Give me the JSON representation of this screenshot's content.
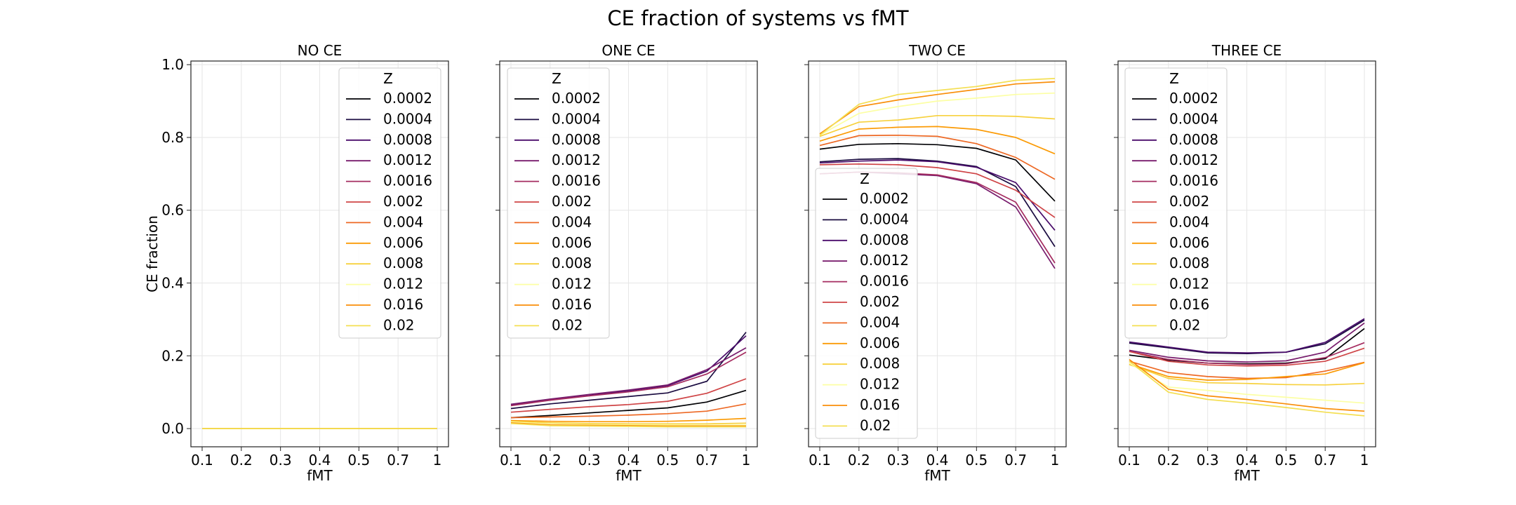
{
  "figure_title": "CE fraction of systems vs fMT",
  "palette": [
    "#000004",
    "#1b0c41",
    "#4a0c6b",
    "#781c6d",
    "#a52c60",
    "#cf4446",
    "#ed6925",
    "#fb9b06",
    "#f7d13d",
    "#fcffa4",
    "#f98e09",
    "#f4df53"
  ],
  "chart_data": [
    {
      "type": "line",
      "title": "NO CE",
      "xlabel": "fMT",
      "ylabel": "CE fraction",
      "x": [
        "0.1",
        "0.2",
        "0.3",
        "0.4",
        "0.5",
        "0.7",
        "1"
      ],
      "ylim": [
        -0.05,
        1.01
      ],
      "yticks": [
        "0.0",
        "0.2",
        "0.4",
        "0.6",
        "0.8",
        "1.0"
      ],
      "legend_title": "Z",
      "legend_position": "upper right",
      "grid": true,
      "series": [
        {
          "name": "0.0002",
          "values": [
            0,
            0,
            0,
            0,
            0,
            0,
            0
          ]
        },
        {
          "name": "0.0004",
          "values": [
            0,
            0,
            0,
            0,
            0,
            0,
            0
          ]
        },
        {
          "name": "0.0008",
          "values": [
            0,
            0,
            0,
            0,
            0,
            0,
            0
          ]
        },
        {
          "name": "0.0012",
          "values": [
            0,
            0,
            0,
            0,
            0,
            0,
            0
          ]
        },
        {
          "name": "0.0016",
          "values": [
            0,
            0,
            0,
            0,
            0,
            0,
            0
          ]
        },
        {
          "name": "0.002",
          "values": [
            0,
            0,
            0,
            0,
            0,
            0,
            0
          ]
        },
        {
          "name": "0.004",
          "values": [
            0,
            0,
            0,
            0,
            0,
            0,
            0
          ]
        },
        {
          "name": "0.006",
          "values": [
            0,
            0,
            0,
            0,
            0,
            0,
            0
          ]
        },
        {
          "name": "0.008",
          "values": [
            0,
            0,
            0,
            0,
            0,
            0,
            0
          ]
        },
        {
          "name": "0.012",
          "values": [
            0,
            0,
            0,
            0,
            0,
            0,
            0
          ]
        },
        {
          "name": "0.016",
          "values": [
            0,
            0,
            0,
            0,
            0,
            0,
            0
          ]
        },
        {
          "name": "0.02",
          "values": [
            0,
            0,
            0,
            0,
            0,
            0,
            0
          ]
        }
      ]
    },
    {
      "type": "line",
      "title": "ONE CE",
      "xlabel": "fMT",
      "x": [
        "0.1",
        "0.2",
        "0.3",
        "0.4",
        "0.5",
        "0.7",
        "1"
      ],
      "ylim": [
        -0.05,
        1.01
      ],
      "legend_title": "Z",
      "legend_position": "upper left",
      "grid": true,
      "series": [
        {
          "name": "0.0002",
          "values": [
            0.03,
            0.036,
            0.043,
            0.05,
            0.057,
            0.073,
            0.105
          ]
        },
        {
          "name": "0.0004",
          "values": [
            0.055,
            0.068,
            0.078,
            0.088,
            0.098,
            0.13,
            0.265
          ]
        },
        {
          "name": "0.0008",
          "values": [
            0.065,
            0.079,
            0.091,
            0.104,
            0.118,
            0.158,
            0.255
          ]
        },
        {
          "name": "0.0012",
          "values": [
            0.067,
            0.081,
            0.094,
            0.106,
            0.12,
            0.162,
            0.222
          ]
        },
        {
          "name": "0.0016",
          "values": [
            0.063,
            0.078,
            0.09,
            0.101,
            0.115,
            0.15,
            0.21
          ]
        },
        {
          "name": "0.002",
          "values": [
            0.045,
            0.053,
            0.06,
            0.066,
            0.075,
            0.097,
            0.137
          ]
        },
        {
          "name": "0.004",
          "values": [
            0.03,
            0.032,
            0.034,
            0.037,
            0.041,
            0.048,
            0.068
          ]
        },
        {
          "name": "0.006",
          "values": [
            0.022,
            0.02,
            0.019,
            0.019,
            0.02,
            0.023,
            0.028
          ]
        },
        {
          "name": "0.008",
          "values": [
            0.02,
            0.016,
            0.014,
            0.013,
            0.013,
            0.013,
            0.015
          ]
        },
        {
          "name": "0.012",
          "values": [
            0.018,
            0.012,
            0.011,
            0.01,
            0.01,
            0.009,
            0.01
          ]
        },
        {
          "name": "0.016",
          "values": [
            0.016,
            0.01,
            0.009,
            0.008,
            0.007,
            0.007,
            0.007
          ]
        },
        {
          "name": "0.02",
          "values": [
            0.014,
            0.008,
            0.007,
            0.006,
            0.005,
            0.005,
            0.005
          ]
        }
      ]
    },
    {
      "type": "line",
      "title": "TWO CE",
      "xlabel": "fMT",
      "x": [
        "0.1",
        "0.2",
        "0.3",
        "0.4",
        "0.5",
        "0.7",
        "1"
      ],
      "ylim": [
        -0.05,
        1.01
      ],
      "legend_title": "Z",
      "legend_position": "center left",
      "grid": true,
      "series": [
        {
          "name": "0.0002",
          "values": [
            0.768,
            0.781,
            0.783,
            0.78,
            0.77,
            0.738,
            0.625
          ]
        },
        {
          "name": "0.0004",
          "values": [
            0.733,
            0.74,
            0.742,
            0.735,
            0.72,
            0.665,
            0.5
          ]
        },
        {
          "name": "0.0008",
          "values": [
            0.73,
            0.735,
            0.738,
            0.733,
            0.718,
            0.676,
            0.545
          ]
        },
        {
          "name": "0.0012",
          "values": [
            0.7,
            0.705,
            0.7,
            0.695,
            0.673,
            0.609,
            0.44
          ]
        },
        {
          "name": "0.0016",
          "values": [
            0.7,
            0.705,
            0.703,
            0.697,
            0.676,
            0.622,
            0.455
          ]
        },
        {
          "name": "0.002",
          "values": [
            0.725,
            0.727,
            0.725,
            0.717,
            0.7,
            0.655,
            0.58
          ]
        },
        {
          "name": "0.004",
          "values": [
            0.778,
            0.805,
            0.806,
            0.803,
            0.783,
            0.745,
            0.685
          ]
        },
        {
          "name": "0.006",
          "values": [
            0.79,
            0.823,
            0.828,
            0.83,
            0.822,
            0.8,
            0.755
          ]
        },
        {
          "name": "0.008",
          "values": [
            0.803,
            0.842,
            0.848,
            0.86,
            0.86,
            0.858,
            0.851
          ]
        },
        {
          "name": "0.012",
          "values": [
            0.806,
            0.866,
            0.885,
            0.9,
            0.908,
            0.918,
            0.922
          ]
        },
        {
          "name": "0.016",
          "values": [
            0.81,
            0.885,
            0.903,
            0.918,
            0.932,
            0.947,
            0.953
          ]
        },
        {
          "name": "0.02",
          "values": [
            0.806,
            0.891,
            0.918,
            0.929,
            0.94,
            0.957,
            0.962
          ]
        }
      ]
    },
    {
      "type": "line",
      "title": "THREE CE",
      "xlabel": "fMT",
      "x": [
        "0.1",
        "0.2",
        "0.3",
        "0.4",
        "0.5",
        "0.7",
        "1"
      ],
      "ylim": [
        -0.05,
        1.01
      ],
      "legend_title": "Z",
      "legend_position": "upper left",
      "grid": true,
      "series": [
        {
          "name": "0.0002",
          "values": [
            0.202,
            0.188,
            0.18,
            0.178,
            0.18,
            0.192,
            0.275
          ]
        },
        {
          "name": "0.0004",
          "values": [
            0.235,
            0.222,
            0.208,
            0.206,
            0.21,
            0.233,
            0.298
          ]
        },
        {
          "name": "0.0008",
          "values": [
            0.238,
            0.224,
            0.21,
            0.208,
            0.21,
            0.237,
            0.302
          ]
        },
        {
          "name": "0.0012",
          "values": [
            0.215,
            0.196,
            0.186,
            0.183,
            0.186,
            0.21,
            0.29
          ]
        },
        {
          "name": "0.0016",
          "values": [
            0.212,
            0.19,
            0.18,
            0.176,
            0.178,
            0.195,
            0.236
          ]
        },
        {
          "name": "0.002",
          "values": [
            0.212,
            0.185,
            0.175,
            0.172,
            0.174,
            0.185,
            0.221
          ]
        },
        {
          "name": "0.004",
          "values": [
            0.185,
            0.154,
            0.143,
            0.138,
            0.14,
            0.158,
            0.182
          ]
        },
        {
          "name": "0.006",
          "values": [
            0.178,
            0.143,
            0.133,
            0.135,
            0.143,
            0.15,
            0.181
          ]
        },
        {
          "name": "0.008",
          "values": [
            0.176,
            0.138,
            0.126,
            0.124,
            0.121,
            0.12,
            0.124
          ]
        },
        {
          "name": "0.012",
          "values": [
            0.18,
            0.114,
            0.105,
            0.094,
            0.086,
            0.078,
            0.07
          ]
        },
        {
          "name": "0.016",
          "values": [
            0.19,
            0.108,
            0.09,
            0.08,
            0.068,
            0.055,
            0.048
          ]
        },
        {
          "name": "0.02",
          "values": [
            0.185,
            0.1,
            0.08,
            0.07,
            0.058,
            0.045,
            0.035
          ]
        }
      ]
    }
  ]
}
